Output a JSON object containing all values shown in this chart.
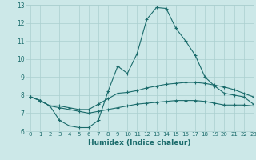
{
  "xlabel": "Humidex (Indice chaleur)",
  "xlim": [
    -0.5,
    23
  ],
  "ylim": [
    6,
    13
  ],
  "yticks": [
    6,
    7,
    8,
    9,
    10,
    11,
    12,
    13
  ],
  "xticks": [
    0,
    1,
    2,
    3,
    4,
    5,
    6,
    7,
    8,
    9,
    10,
    11,
    12,
    13,
    14,
    15,
    16,
    17,
    18,
    19,
    20,
    21,
    22,
    23
  ],
  "background_color": "#cce8e8",
  "grid_color": "#aacfcf",
  "line_color": "#1a6b6b",
  "line1": [
    7.9,
    7.7,
    7.4,
    6.6,
    6.3,
    6.2,
    6.2,
    6.6,
    8.2,
    9.6,
    9.2,
    10.3,
    12.2,
    12.85,
    12.8,
    11.7,
    11.0,
    10.2,
    9.0,
    8.5,
    8.1,
    8.0,
    7.9,
    7.5
  ],
  "line2": [
    7.9,
    7.7,
    7.4,
    7.4,
    7.3,
    7.2,
    7.2,
    7.5,
    7.8,
    8.1,
    8.15,
    8.25,
    8.4,
    8.5,
    8.6,
    8.65,
    8.7,
    8.7,
    8.65,
    8.55,
    8.45,
    8.3,
    8.1,
    7.9
  ],
  "line3": [
    7.9,
    7.7,
    7.4,
    7.3,
    7.2,
    7.1,
    7.0,
    7.1,
    7.2,
    7.3,
    7.4,
    7.5,
    7.55,
    7.6,
    7.65,
    7.7,
    7.7,
    7.7,
    7.65,
    7.55,
    7.45,
    7.45,
    7.45,
    7.4
  ]
}
